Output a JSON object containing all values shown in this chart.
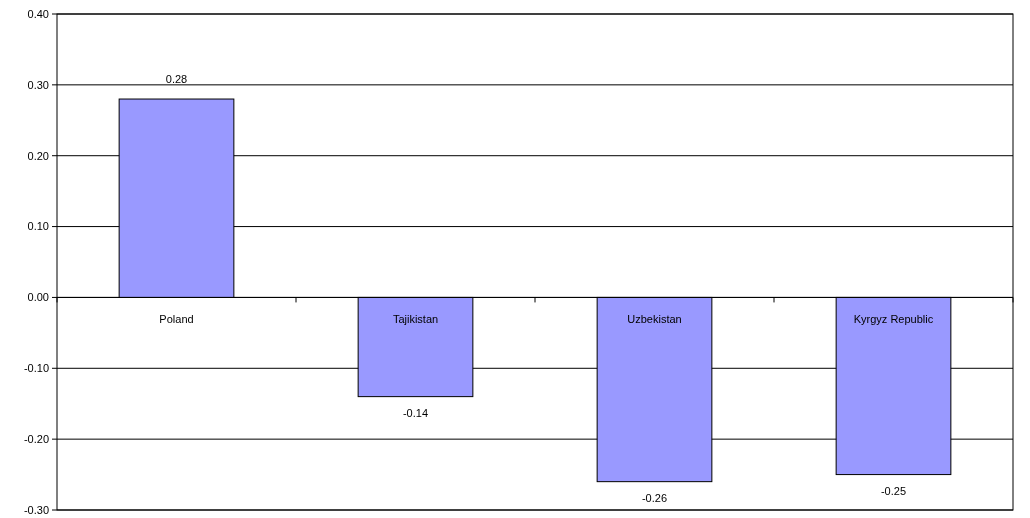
{
  "chart_data": {
    "type": "bar",
    "categories": [
      "Poland",
      "Tajikistan",
      "Uzbekistan",
      "Kyrgyz Republic"
    ],
    "values": [
      0.28,
      -0.14,
      -0.26,
      -0.25
    ],
    "color": "#9999ff",
    "ylim": [
      -0.3,
      0.4
    ],
    "yticks": [
      {
        "value": -0.3,
        "label": "-0.30"
      },
      {
        "value": -0.2,
        "label": "-0.20"
      },
      {
        "value": -0.1,
        "label": "-0.10"
      },
      {
        "value": 0,
        "label": "0.00"
      },
      {
        "value": 0.1,
        "label": "0.10"
      },
      {
        "value": 0.2,
        "label": "0.20"
      },
      {
        "value": 0.3,
        "label": "0.30"
      },
      {
        "value": 0.4,
        "label": "0.40"
      }
    ],
    "grid": "y",
    "data_labels": true
  }
}
